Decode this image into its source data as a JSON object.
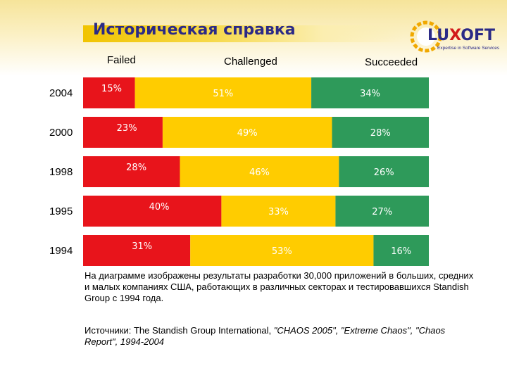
{
  "slide": {
    "title": "Историческая справка",
    "caption": "На диаграмме изображены результаты разработки 30,000 приложений в больших, средних и малых компаниях США, работающих в различных секторах и тестировавшихся Standish Group с 1994 года.",
    "sources_prefix": "Источники: The Standish Group International, ",
    "sources_items": "\"CHAOS 2005\", \"Extreme Chaos\", \"Chaos Report\", 1994-2004"
  },
  "logo": {
    "text_before_x": "LU",
    "text_x": "X",
    "text_after_x": "OFT",
    "tagline": "Expertise in Software Services",
    "icon": "gear-icon"
  },
  "colors": {
    "failed": "#e8141b",
    "challenged": "#ffcc00",
    "succeeded": "#2e9a5a",
    "title_text": "#2b2a86"
  },
  "chart_data": {
    "type": "bar",
    "orientation": "horizontal",
    "stacked": true,
    "normalized": true,
    "categories": [
      "2004",
      "2000",
      "1998",
      "1995",
      "1994"
    ],
    "series": [
      {
        "name": "Failed",
        "values": [
          15,
          23,
          28,
          40,
          31
        ]
      },
      {
        "name": "Challenged",
        "values": [
          51,
          49,
          46,
          33,
          53
        ]
      },
      {
        "name": "Succeeded",
        "values": [
          34,
          28,
          26,
          27,
          16
        ]
      }
    ],
    "unit": "%",
    "legend_position": "top",
    "grid": false
  }
}
